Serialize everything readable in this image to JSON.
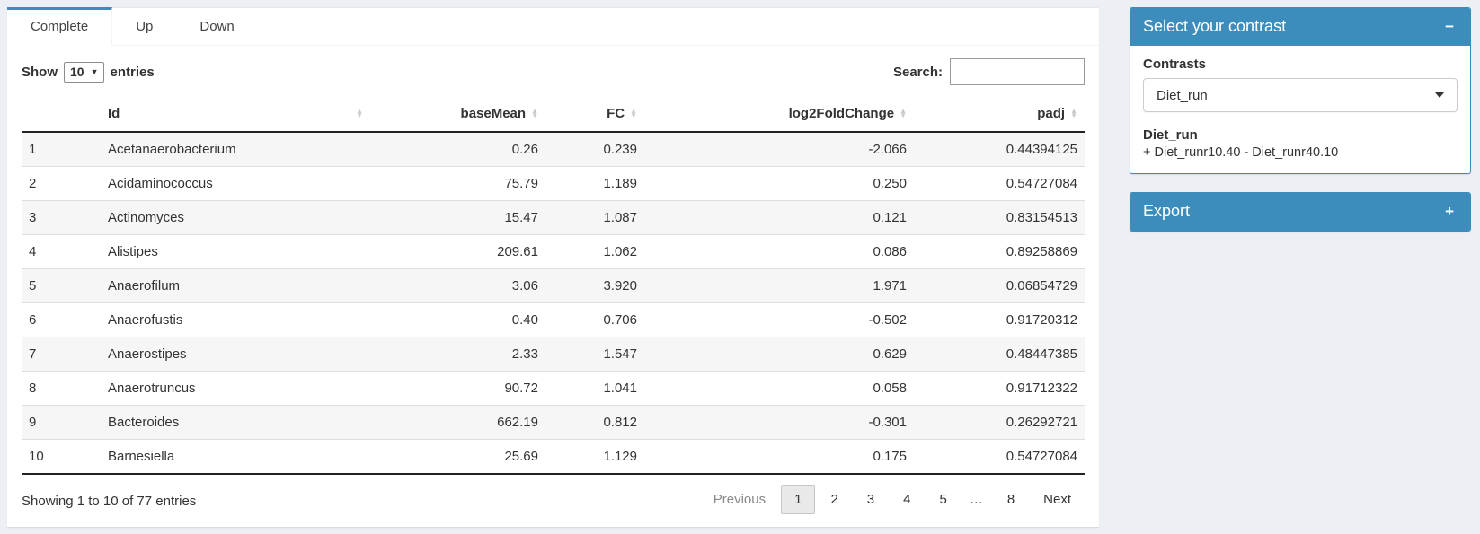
{
  "tabs": [
    {
      "label": "Complete",
      "active": true
    },
    {
      "label": "Up",
      "active": false
    },
    {
      "label": "Down",
      "active": false
    }
  ],
  "table_controls": {
    "show_label": "Show",
    "page_size": "10",
    "entries_label": "entries",
    "search_label": "Search:",
    "search_value": ""
  },
  "table": {
    "columns": [
      "Id",
      "baseMean",
      "FC",
      "log2FoldChange",
      "padj"
    ],
    "rows": [
      {
        "n": "1",
        "id": "Acetanaerobacterium",
        "baseMean": "0.26",
        "fc": "0.239",
        "log2fc": "-2.066",
        "padj": "0.44394125"
      },
      {
        "n": "2",
        "id": "Acidaminococcus",
        "baseMean": "75.79",
        "fc": "1.189",
        "log2fc": "0.250",
        "padj": "0.54727084"
      },
      {
        "n": "3",
        "id": "Actinomyces",
        "baseMean": "15.47",
        "fc": "1.087",
        "log2fc": "0.121",
        "padj": "0.83154513"
      },
      {
        "n": "4",
        "id": "Alistipes",
        "baseMean": "209.61",
        "fc": "1.062",
        "log2fc": "0.086",
        "padj": "0.89258869"
      },
      {
        "n": "5",
        "id": "Anaerofilum",
        "baseMean": "3.06",
        "fc": "3.920",
        "log2fc": "1.971",
        "padj": "0.06854729"
      },
      {
        "n": "6",
        "id": "Anaerofustis",
        "baseMean": "0.40",
        "fc": "0.706",
        "log2fc": "-0.502",
        "padj": "0.91720312"
      },
      {
        "n": "7",
        "id": "Anaerostipes",
        "baseMean": "2.33",
        "fc": "1.547",
        "log2fc": "0.629",
        "padj": "0.48447385"
      },
      {
        "n": "8",
        "id": "Anaerotruncus",
        "baseMean": "90.72",
        "fc": "1.041",
        "log2fc": "0.058",
        "padj": "0.91712322"
      },
      {
        "n": "9",
        "id": "Bacteroides",
        "baseMean": "662.19",
        "fc": "0.812",
        "log2fc": "-0.301",
        "padj": "0.26292721"
      },
      {
        "n": "10",
        "id": "Barnesiella",
        "baseMean": "25.69",
        "fc": "1.129",
        "log2fc": "0.175",
        "padj": "0.54727084"
      }
    ]
  },
  "footer": {
    "info": "Showing 1 to 10 of 77 entries",
    "previous_label": "Previous",
    "next_label": "Next",
    "pages": [
      "1",
      "2",
      "3",
      "4",
      "5",
      "…",
      "8"
    ],
    "current_page": "1"
  },
  "panels": {
    "contrast": {
      "title": "Select your contrast",
      "collapse_icon": "−",
      "contrasts_label": "Contrasts",
      "selected_contrast": "Diet_run",
      "detail_title": "Diet_run",
      "detail_formula": "+ Diet_runr10.40 - Diet_runr40.10"
    },
    "export": {
      "title": "Export",
      "collapse_icon": "+"
    }
  },
  "icons": {
    "sort_up": "▲",
    "sort_down": "▼",
    "dropdown_arrow": "▼"
  },
  "colors": {
    "primary": "#3c8dbc",
    "page_background": "#ecf0f5",
    "stripe": "#f6f6f6"
  }
}
